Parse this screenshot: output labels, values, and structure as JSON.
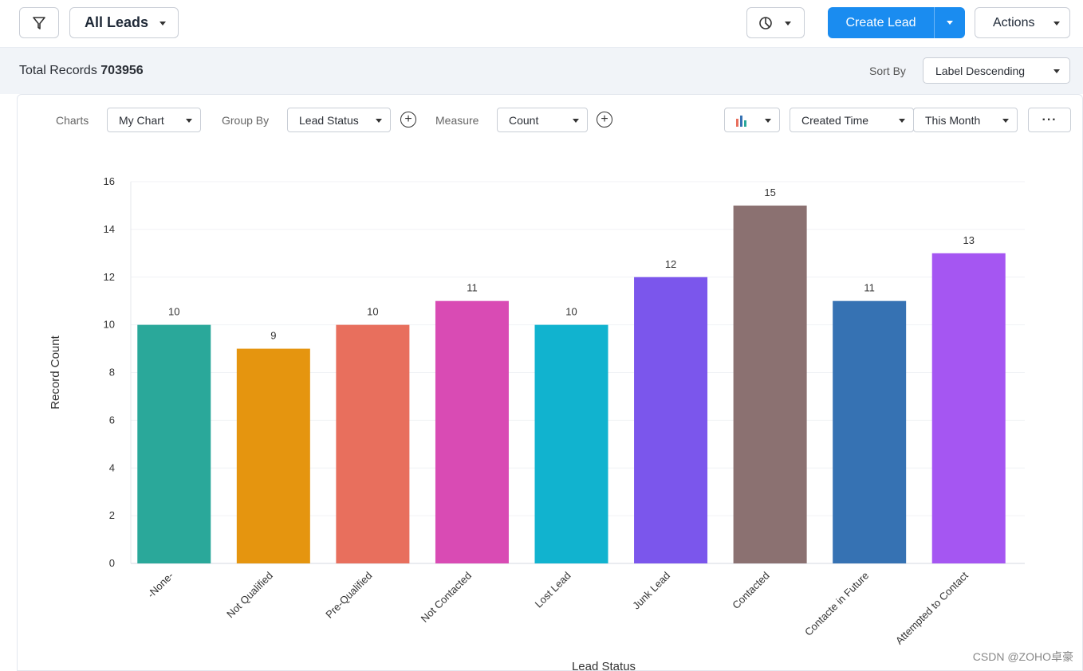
{
  "topbar": {
    "view_label": "All Leads",
    "create_label": "Create Lead",
    "actions_label": "Actions"
  },
  "subbar": {
    "total_label": "Total Records",
    "total_value": "703956",
    "sort_by_label": "Sort By",
    "sort_value": "Label Descending"
  },
  "controls": {
    "charts_label": "Charts",
    "chart_value": "My Chart",
    "group_by_label": "Group By",
    "group_by_value": "Lead Status",
    "measure_label": "Measure",
    "measure_value": "Count",
    "time_field": "Created Time",
    "time_range": "This Month",
    "more_label": "···"
  },
  "chart_data": {
    "type": "bar",
    "title": "",
    "xlabel": "Lead Status",
    "ylabel": "Record Count",
    "ylim": [
      0,
      16
    ],
    "yticks": [
      0,
      2,
      4,
      6,
      8,
      10,
      12,
      14,
      16
    ],
    "grid": true,
    "legend": "none",
    "categories": [
      "-None-",
      "Not Qualified",
      "Pre-Qualified",
      "Not Contacted",
      "Lost Lead",
      "Junk Lead",
      "Contacted",
      "Contacte in Future",
      "Attempted to Contact"
    ],
    "values": [
      10,
      9,
      10,
      11,
      10,
      12,
      15,
      11,
      13
    ],
    "colors": [
      "#2aa89a",
      "#e5950f",
      "#e86f5d",
      "#d94bb4",
      "#11b3cf",
      "#7b56ec",
      "#8b7171",
      "#3672b3",
      "#a556f2"
    ]
  },
  "watermark": "CSDN @ZOHO卓豪"
}
